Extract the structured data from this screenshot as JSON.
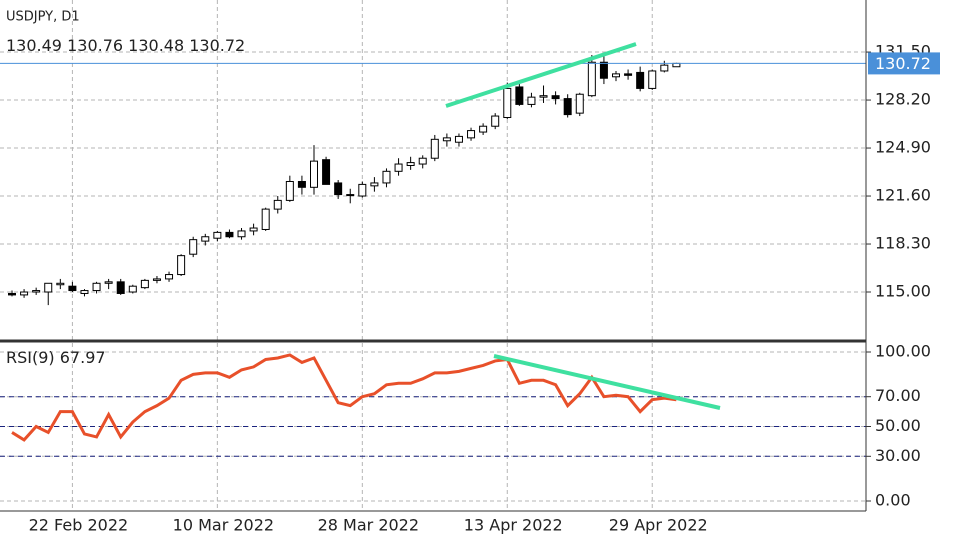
{
  "chart_data": [
    {
      "type": "candlestick",
      "title": "USDJPY, D1",
      "categories": [
        null,
        null,
        null,
        null,
        null,
        "22 Feb 2022",
        null,
        null,
        null,
        null,
        null,
        null,
        null,
        null,
        null,
        null,
        null,
        "10 Mar 2022",
        null,
        null,
        null,
        null,
        null,
        null,
        null,
        null,
        null,
        null,
        null,
        "28 Mar 2022",
        null,
        null,
        null,
        null,
        null,
        null,
        null,
        null,
        null,
        null,
        null,
        "13 Apr 2022",
        null,
        null,
        null,
        null,
        null,
        null,
        null,
        null,
        null,
        null,
        null,
        "29 Apr 2022",
        null,
        null
      ],
      "open": [
        114.9,
        114.8,
        115.0,
        115.0,
        115.5,
        115.4,
        114.9,
        115.1,
        115.6,
        115.7,
        115.0,
        115.3,
        115.8,
        115.9,
        116.2,
        117.6,
        118.5,
        118.7,
        119.1,
        118.8,
        119.2,
        119.3,
        120.7,
        121.3,
        122.6,
        122.2,
        124.1,
        122.5,
        121.7,
        121.6,
        122.3,
        122.5,
        123.3,
        123.7,
        123.8,
        124.2,
        125.4,
        125.3,
        125.6,
        126.0,
        126.4,
        127.0,
        129.1,
        127.9,
        128.4,
        128.5,
        128.3,
        127.3,
        128.5,
        130.8,
        129.8,
        130.0,
        130.1,
        129.0,
        130.2,
        130.49
      ],
      "high": [
        115.1,
        115.2,
        115.3,
        115.6,
        115.9,
        115.7,
        115.2,
        115.7,
        115.9,
        115.9,
        115.5,
        115.9,
        116.1,
        116.4,
        117.6,
        118.8,
        119.0,
        119.2,
        119.3,
        119.4,
        119.7,
        120.8,
        121.6,
        123.0,
        123.0,
        125.1,
        124.3,
        122.7,
        122.1,
        122.6,
        122.9,
        123.5,
        124.2,
        124.3,
        124.4,
        125.8,
        125.9,
        125.9,
        126.3,
        126.6,
        127.3,
        129.4,
        129.4,
        128.7,
        129.2,
        128.8,
        128.6,
        128.7,
        131.3,
        131.2,
        130.2,
        130.3,
        130.5,
        130.3,
        130.9,
        130.76
      ],
      "low": [
        114.7,
        114.6,
        114.8,
        114.1,
        115.2,
        115.0,
        114.7,
        114.9,
        115.2,
        114.8,
        114.9,
        115.2,
        115.6,
        115.7,
        116.1,
        117.4,
        118.2,
        118.5,
        118.7,
        118.6,
        118.9,
        119.2,
        120.4,
        121.2,
        121.7,
        121.7,
        122.4,
        121.4,
        121.1,
        121.5,
        121.9,
        122.2,
        123.0,
        123.4,
        123.5,
        124.0,
        125.0,
        125.0,
        125.4,
        125.8,
        126.2,
        126.9,
        127.8,
        127.7,
        128.0,
        127.9,
        127.0,
        127.1,
        128.4,
        129.3,
        129.5,
        129.6,
        128.8,
        128.9,
        130.1,
        130.48
      ],
      "close": [
        114.8,
        115.0,
        115.1,
        115.6,
        115.6,
        115.1,
        115.1,
        115.6,
        115.7,
        114.9,
        115.4,
        115.8,
        115.9,
        116.2,
        117.5,
        118.6,
        118.8,
        119.1,
        118.8,
        119.2,
        119.4,
        120.7,
        121.3,
        122.6,
        122.2,
        124.0,
        122.4,
        121.7,
        121.7,
        122.4,
        122.5,
        123.3,
        123.8,
        123.9,
        124.2,
        125.5,
        125.6,
        125.7,
        126.1,
        126.4,
        127.1,
        129.0,
        127.9,
        128.4,
        128.5,
        128.3,
        127.2,
        128.6,
        130.8,
        129.7,
        130.0,
        129.9,
        129.0,
        130.2,
        130.6,
        130.72
      ],
      "ylim": [
        111.7,
        135.08
      ],
      "yticks": [
        {
          "value": 115,
          "label": "115.00"
        },
        {
          "value": 118.3,
          "label": "118.30"
        },
        {
          "value": 121.6,
          "label": "121.60"
        },
        {
          "value": 124.9,
          "label": "124.90"
        },
        {
          "value": 128.2,
          "label": "128.20"
        },
        {
          "value": 131.5,
          "label": "131.50"
        }
      ],
      "grid": true,
      "up_color": "#ffffff",
      "down_color": "#000000",
      "price_line_color": "#4a90d9"
    },
    {
      "type": "line",
      "name": "RSI(9)",
      "color": "#e8502a",
      "values": [
        46,
        41,
        50,
        46,
        60,
        60,
        45,
        43,
        58,
        43,
        53,
        60,
        64,
        69,
        81,
        85,
        86,
        86,
        83,
        88,
        90,
        95,
        96,
        98,
        93,
        96,
        81,
        66,
        64,
        70,
        72,
        78,
        79,
        79,
        82,
        86,
        86,
        87,
        89,
        91,
        94,
        95,
        79,
        81,
        81,
        78,
        64,
        72,
        83,
        70,
        71,
        70,
        60,
        68,
        69,
        67.97
      ],
      "ylim": [
        0,
        100
      ],
      "yticks": [
        {
          "value": 0,
          "label": "0.00"
        },
        {
          "value": 30,
          "label": "30.00"
        },
        {
          "value": 50,
          "label": "50.00"
        },
        {
          "value": 70,
          "label": "70.00"
        },
        {
          "value": 100,
          "label": "100.00"
        }
      ],
      "levels": [
        30,
        50,
        70
      ],
      "level_color": "#1a237e"
    }
  ]
}
